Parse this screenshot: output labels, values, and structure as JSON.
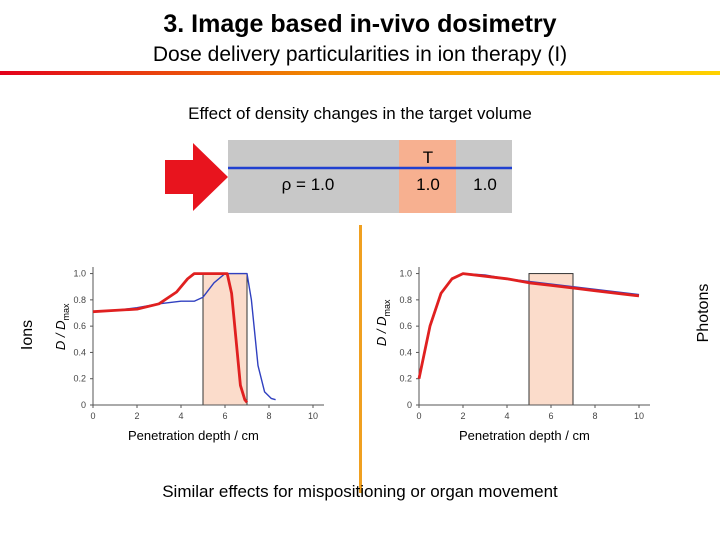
{
  "header": {
    "title": "3. Image based in-vivo dosimetry",
    "subtitle": "Dose delivery particularities in ion therapy (I)"
  },
  "effect_heading": "Effect of density changes in the target volume",
  "phantom": {
    "density_label": "ρ = 1.0",
    "target_label": "T",
    "target_density": "1.0",
    "distal_density": "1.0",
    "colors": {
      "box": "#c8c8c8",
      "target": "#f7b090",
      "beam_line": "#2040d0",
      "arrow": "#e8141e"
    }
  },
  "side_labels": {
    "left": "Ions",
    "right": "Photons"
  },
  "footer": "Similar effects for mispositioning or organ movement",
  "chart_data": [
    {
      "type": "line",
      "xlabel": "Penetration depth / cm",
      "ylabel": "D / D",
      "ylabel_sub": "max",
      "xlim": [
        0,
        10.5
      ],
      "ylim": [
        0,
        1.05
      ],
      "xticks": [
        "0",
        "2",
        "4",
        "6",
        "8",
        "10"
      ],
      "yticks": [
        "0",
        "0.2",
        "0.4",
        "0.6",
        "0.8",
        "1.0"
      ],
      "grid": false,
      "target_region": [
        5.0,
        7.0
      ],
      "series": [
        {
          "color": "#3040c0",
          "points": [
            [
              0,
              0.71
            ],
            [
              1,
              0.72
            ],
            [
              2,
              0.74
            ],
            [
              3,
              0.77
            ],
            [
              4,
              0.79
            ],
            [
              4.6,
              0.79
            ],
            [
              5.0,
              0.82
            ],
            [
              5.5,
              0.93
            ],
            [
              6.0,
              1.0
            ],
            [
              6.6,
              1.0
            ],
            [
              7.0,
              1.0
            ],
            [
              7.2,
              0.8
            ],
            [
              7.5,
              0.3
            ],
            [
              7.8,
              0.1
            ],
            [
              8.1,
              0.05
            ],
            [
              8.3,
              0.04
            ]
          ]
        },
        {
          "color": "#e02020",
          "points": [
            [
              0,
              0.71
            ],
            [
              1,
              0.72
            ],
            [
              2,
              0.73
            ],
            [
              3,
              0.77
            ],
            [
              3.8,
              0.86
            ],
            [
              4.3,
              0.96
            ],
            [
              4.6,
              1.0
            ],
            [
              6.1,
              1.0
            ],
            [
              6.3,
              0.85
            ],
            [
              6.5,
              0.5
            ],
            [
              6.7,
              0.15
            ],
            [
              6.9,
              0.04
            ],
            [
              7.0,
              0.02
            ]
          ]
        }
      ]
    },
    {
      "type": "line",
      "xlabel": "Penetration depth / cm",
      "ylabel": "D / D",
      "ylabel_sub": "max",
      "xlim": [
        0,
        10.5
      ],
      "ylim": [
        0,
        1.05
      ],
      "xticks": [
        "0",
        "2",
        "4",
        "6",
        "8",
        "10"
      ],
      "yticks": [
        "0",
        "0.2",
        "0.4",
        "0.6",
        "0.8",
        "1.0"
      ],
      "grid": false,
      "target_region": [
        5.0,
        7.0
      ],
      "series": [
        {
          "color": "#3040c0",
          "points": [
            [
              0,
              0.22
            ],
            [
              0.5,
              0.6
            ],
            [
              1,
              0.85
            ],
            [
              1.5,
              0.96
            ],
            [
              2,
              1.0
            ],
            [
              3,
              0.99
            ],
            [
              4,
              0.96
            ],
            [
              5,
              0.94
            ],
            [
              6,
              0.92
            ],
            [
              7,
              0.9
            ],
            [
              8,
              0.88
            ],
            [
              9,
              0.86
            ],
            [
              10,
              0.84
            ]
          ]
        },
        {
          "color": "#e02020",
          "points": [
            [
              0,
              0.2
            ],
            [
              0.5,
              0.6
            ],
            [
              1,
              0.85
            ],
            [
              1.5,
              0.96
            ],
            [
              2,
              1.0
            ],
            [
              3,
              0.98
            ],
            [
              4,
              0.96
            ],
            [
              5,
              0.93
            ],
            [
              6,
              0.91
            ],
            [
              7,
              0.89
            ],
            [
              8,
              0.87
            ],
            [
              9,
              0.85
            ],
            [
              10,
              0.83
            ]
          ]
        }
      ]
    }
  ]
}
